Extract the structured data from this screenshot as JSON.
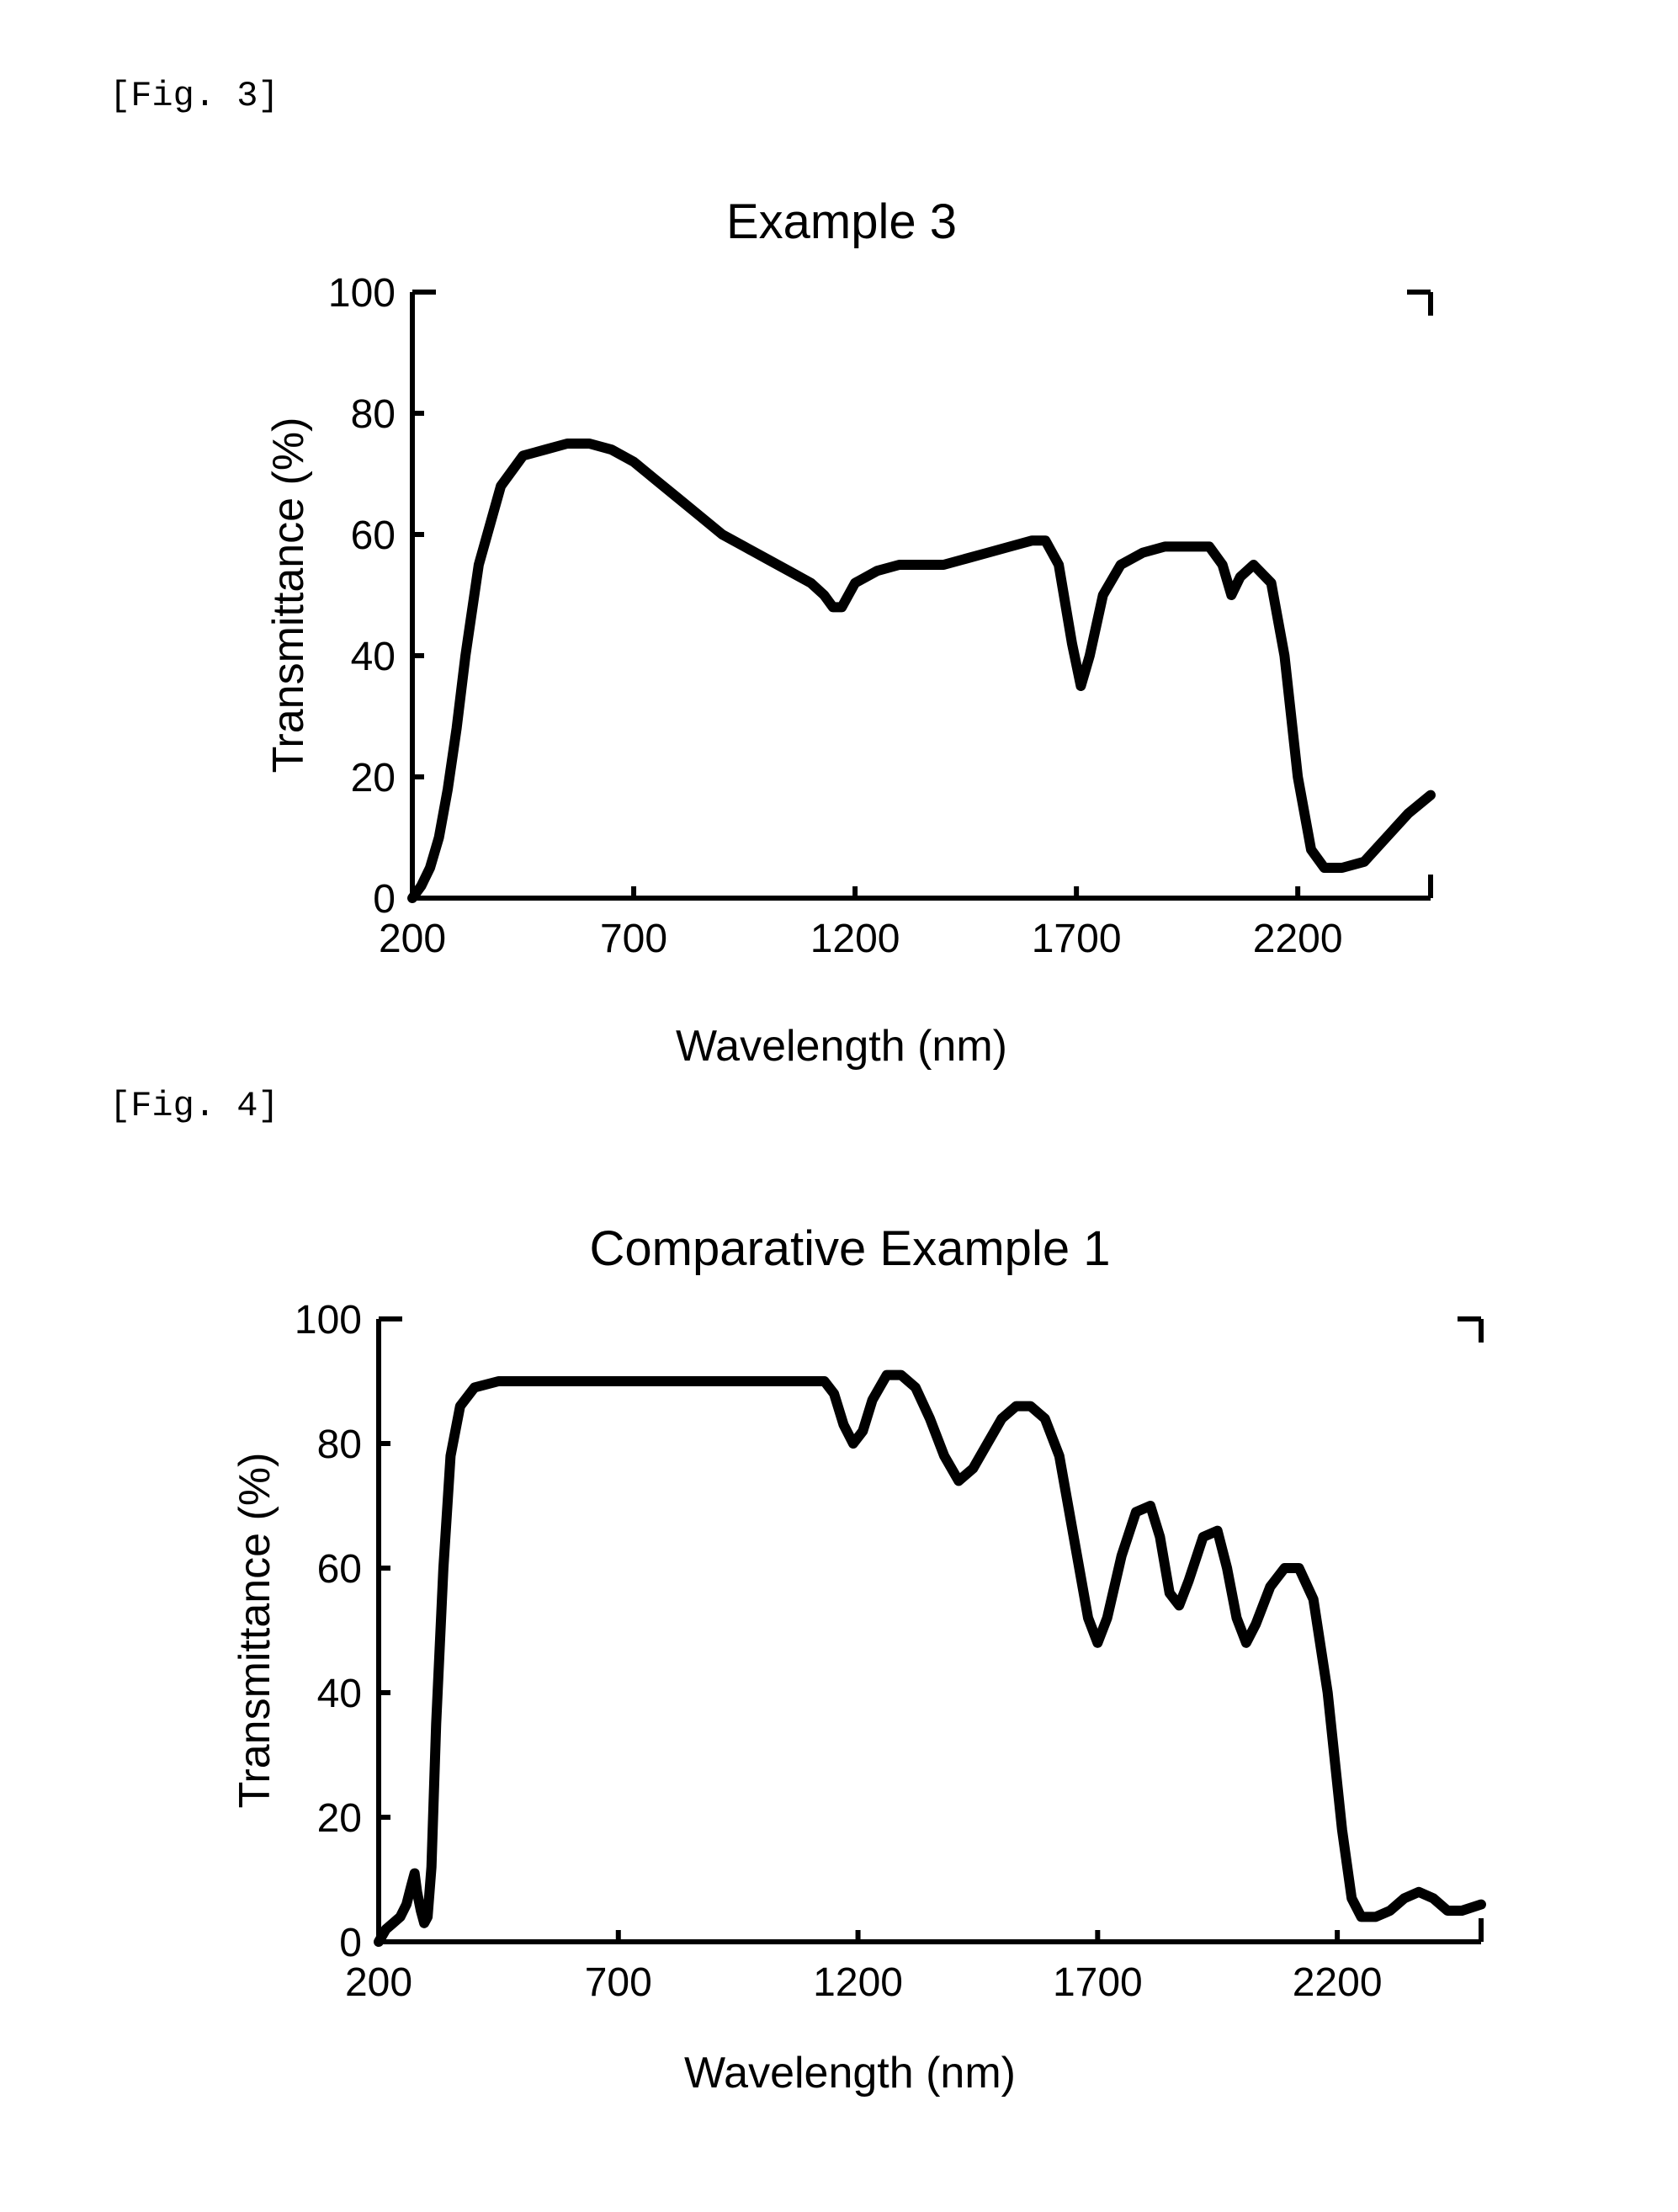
{
  "fig3_label": "[Fig. 3]",
  "fig4_label": "[Fig. 4]",
  "chart1": {
    "type": "line",
    "title": "Example 3",
    "xlabel": "Wavelength (nm)",
    "ylabel": "Transmittance (%)",
    "xlim": [
      200,
      2500
    ],
    "ylim": [
      0,
      100
    ],
    "xticks": [
      200,
      700,
      1200,
      1700,
      2200
    ],
    "xtick_labels": [
      "200",
      "700",
      "1200",
      "1700",
      "2200"
    ],
    "yticks": [
      0,
      20,
      40,
      60,
      80,
      100
    ],
    "ytick_labels": [
      "0",
      "20",
      "40",
      "60",
      "80",
      "100"
    ],
    "series": [
      {
        "color": "#000000",
        "line_width": 12,
        "points": [
          [
            200,
            0
          ],
          [
            220,
            2
          ],
          [
            240,
            5
          ],
          [
            260,
            10
          ],
          [
            280,
            18
          ],
          [
            300,
            28
          ],
          [
            320,
            40
          ],
          [
            350,
            55
          ],
          [
            400,
            68
          ],
          [
            450,
            73
          ],
          [
            500,
            74
          ],
          [
            550,
            75
          ],
          [
            600,
            75
          ],
          [
            650,
            74
          ],
          [
            700,
            72
          ],
          [
            750,
            69
          ],
          [
            800,
            66
          ],
          [
            850,
            63
          ],
          [
            900,
            60
          ],
          [
            950,
            58
          ],
          [
            1000,
            56
          ],
          [
            1050,
            54
          ],
          [
            1100,
            52
          ],
          [
            1130,
            50
          ],
          [
            1150,
            48
          ],
          [
            1170,
            48
          ],
          [
            1200,
            52
          ],
          [
            1250,
            54
          ],
          [
            1300,
            55
          ],
          [
            1350,
            55
          ],
          [
            1400,
            55
          ],
          [
            1450,
            56
          ],
          [
            1500,
            57
          ],
          [
            1550,
            58
          ],
          [
            1600,
            59
          ],
          [
            1630,
            59
          ],
          [
            1660,
            55
          ],
          [
            1690,
            42
          ],
          [
            1710,
            35
          ],
          [
            1730,
            40
          ],
          [
            1760,
            50
          ],
          [
            1800,
            55
          ],
          [
            1850,
            57
          ],
          [
            1900,
            58
          ],
          [
            1950,
            58
          ],
          [
            2000,
            58
          ],
          [
            2030,
            55
          ],
          [
            2050,
            50
          ],
          [
            2070,
            53
          ],
          [
            2100,
            55
          ],
          [
            2140,
            52
          ],
          [
            2170,
            40
          ],
          [
            2200,
            20
          ],
          [
            2230,
            8
          ],
          [
            2260,
            5
          ],
          [
            2300,
            5
          ],
          [
            2350,
            6
          ],
          [
            2400,
            10
          ],
          [
            2450,
            14
          ],
          [
            2500,
            17
          ]
        ]
      }
    ],
    "background_color": "#ffffff",
    "axis_color": "#000000",
    "axis_width": 6,
    "tick_length": 14,
    "tick_fontsize": 48,
    "label_fontsize": 52,
    "title_fontsize": 58
  },
  "chart2": {
    "type": "line",
    "title": "Comparative Example 1",
    "xlabel": "Wavelength (nm)",
    "ylabel": "Transmittance (%)",
    "xlim": [
      200,
      2500
    ],
    "ylim": [
      0,
      100
    ],
    "xticks": [
      200,
      700,
      1200,
      1700,
      2200
    ],
    "xtick_labels": [
      "200",
      "700",
      "1200",
      "1700",
      "2200"
    ],
    "yticks": [
      0,
      20,
      40,
      60,
      80,
      100
    ],
    "ytick_labels": [
      "0",
      "20",
      "40",
      "60",
      "80",
      "100"
    ],
    "series": [
      {
        "color": "#000000",
        "line_width": 12,
        "points": [
          [
            200,
            0
          ],
          [
            215,
            2
          ],
          [
            230,
            3
          ],
          [
            245,
            4
          ],
          [
            258,
            6
          ],
          [
            268,
            9
          ],
          [
            275,
            11
          ],
          [
            280,
            8
          ],
          [
            288,
            5
          ],
          [
            295,
            3
          ],
          [
            302,
            4
          ],
          [
            310,
            12
          ],
          [
            320,
            35
          ],
          [
            335,
            60
          ],
          [
            350,
            78
          ],
          [
            370,
            86
          ],
          [
            400,
            89
          ],
          [
            450,
            90
          ],
          [
            500,
            90
          ],
          [
            600,
            90
          ],
          [
            700,
            90
          ],
          [
            800,
            90
          ],
          [
            900,
            90
          ],
          [
            1000,
            90
          ],
          [
            1050,
            90
          ],
          [
            1100,
            90
          ],
          [
            1130,
            90
          ],
          [
            1150,
            88
          ],
          [
            1170,
            83
          ],
          [
            1190,
            80
          ],
          [
            1210,
            82
          ],
          [
            1230,
            87
          ],
          [
            1260,
            91
          ],
          [
            1290,
            91
          ],
          [
            1320,
            89
          ],
          [
            1350,
            84
          ],
          [
            1380,
            78
          ],
          [
            1410,
            74
          ],
          [
            1440,
            76
          ],
          [
            1470,
            80
          ],
          [
            1500,
            84
          ],
          [
            1530,
            86
          ],
          [
            1560,
            86
          ],
          [
            1590,
            84
          ],
          [
            1620,
            78
          ],
          [
            1650,
            65
          ],
          [
            1680,
            52
          ],
          [
            1700,
            48
          ],
          [
            1720,
            52
          ],
          [
            1750,
            62
          ],
          [
            1780,
            69
          ],
          [
            1810,
            70
          ],
          [
            1830,
            65
          ],
          [
            1850,
            56
          ],
          [
            1870,
            54
          ],
          [
            1890,
            58
          ],
          [
            1920,
            65
          ],
          [
            1950,
            66
          ],
          [
            1970,
            60
          ],
          [
            1990,
            52
          ],
          [
            2010,
            48
          ],
          [
            2030,
            51
          ],
          [
            2060,
            57
          ],
          [
            2090,
            60
          ],
          [
            2120,
            60
          ],
          [
            2150,
            55
          ],
          [
            2180,
            40
          ],
          [
            2210,
            18
          ],
          [
            2230,
            7
          ],
          [
            2250,
            4
          ],
          [
            2280,
            4
          ],
          [
            2310,
            5
          ],
          [
            2340,
            7
          ],
          [
            2370,
            8
          ],
          [
            2400,
            7
          ],
          [
            2430,
            5
          ],
          [
            2460,
            5
          ],
          [
            2500,
            6
          ]
        ]
      }
    ],
    "background_color": "#ffffff",
    "axis_color": "#000000",
    "axis_width": 6,
    "tick_length": 14,
    "tick_fontsize": 48,
    "label_fontsize": 52,
    "title_fontsize": 58
  }
}
